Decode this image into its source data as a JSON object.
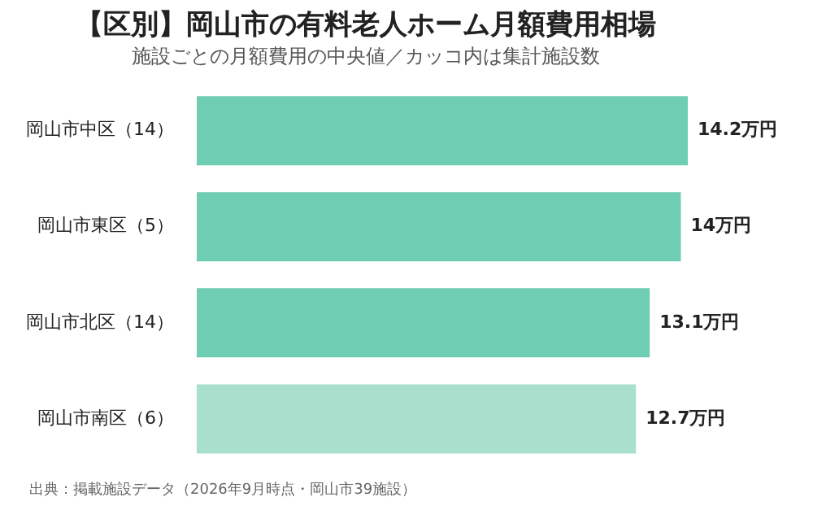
{
  "chart_data": {
    "type": "bar",
    "orientation": "horizontal",
    "title": "【区別】岡山市の有料老人ホーム月額費用相場",
    "subtitle": "施設ごとの月額費用の中央値／カッコ内は集計施設数",
    "categories": [
      "岡山市中区（14）",
      "岡山市東区（5）",
      "岡山市北区（14）",
      "岡山市南区（6）"
    ],
    "values": [
      14.2,
      14,
      13.1,
      12.7
    ],
    "value_labels": [
      "14.2万円",
      "14万円",
      "13.1万円",
      "12.7万円"
    ],
    "colors": [
      "#6ecdb2",
      "#6ecdb2",
      "#6ecdb2",
      "#a9dfcd"
    ],
    "tick_labels": "y",
    "legend": false,
    "annotations": [
      "出典：掲載施設データ（2026年9月時点・岡山市39施設）"
    ]
  }
}
